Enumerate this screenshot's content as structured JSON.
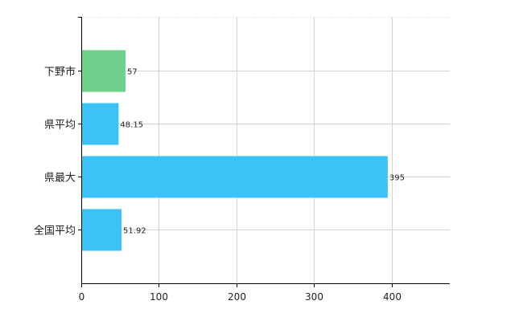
{
  "chart_data": {
    "type": "bar",
    "orientation": "horizontal",
    "categories": [
      "下野市",
      "県平均",
      "県最大",
      "全国平均"
    ],
    "values": [
      57,
      48.15,
      395,
      51.92
    ],
    "value_labels": [
      "57",
      "48.15",
      "395",
      "51.92"
    ],
    "colors": [
      "#6fd08c",
      "#3cc3f5",
      "#3cc3f5",
      "#3cc3f5"
    ],
    "xlim": [
      0,
      475
    ],
    "xticks": [
      0,
      100,
      200,
      300,
      400
    ],
    "xtick_labels": [
      "0",
      "100",
      "200",
      "300",
      "400"
    ],
    "grid": true,
    "title": "",
    "xlabel": "",
    "ylabel": ""
  }
}
